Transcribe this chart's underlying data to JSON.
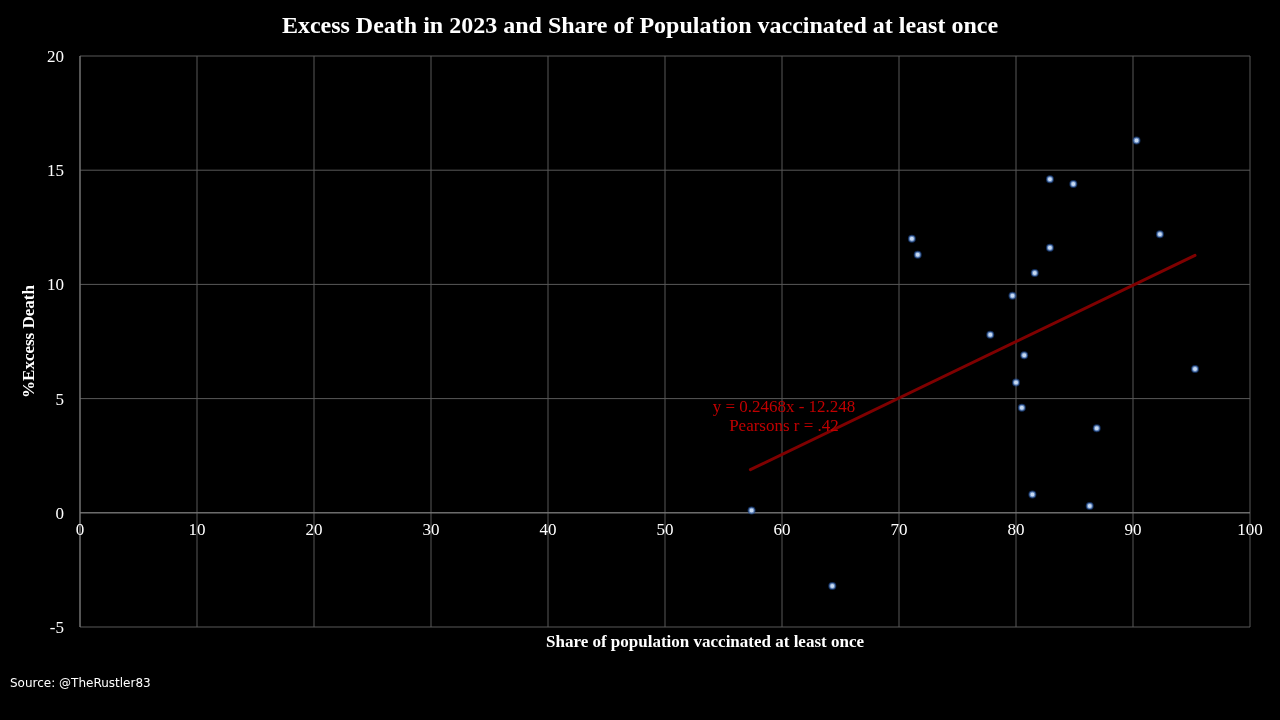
{
  "chart_data": {
    "type": "scatter",
    "title": "Excess Death in 2023 and Share of Population vaccinated at least once",
    "xlabel": "Share of population vaccinated at least once",
    "ylabel": "%Excess Death",
    "xlim": [
      0,
      100
    ],
    "xticks": [
      0,
      10,
      20,
      30,
      40,
      50,
      60,
      70,
      80,
      90,
      100
    ],
    "ylim": [
      -5,
      20
    ],
    "yticks": [
      -5,
      0,
      5,
      10,
      15,
      20
    ],
    "grid": true,
    "series": [
      {
        "color": "#c6d9f1",
        "marker": "circle",
        "x": [
          57.4,
          64.3,
          90.3,
          82.9,
          84.9,
          71.1,
          71.6,
          92.3,
          82.9,
          81.6,
          79.7,
          77.8,
          80.7,
          80.0,
          95.3,
          80.5,
          86.9,
          81.4,
          86.3
        ],
        "values": [
          0.1,
          -3.2,
          16.3,
          14.6,
          14.4,
          12.0,
          11.3,
          12.2,
          11.6,
          10.5,
          9.5,
          7.8,
          6.9,
          5.7,
          6.3,
          4.6,
          3.7,
          0.8,
          0.3
        ]
      },
      {
        "type": "line",
        "color": "#7f0000",
        "x": [
          57.3,
          95.3
        ],
        "values": [
          1.89,
          11.27
        ]
      }
    ],
    "annotations": [
      "y = 0.2468x - 12.248",
      "Pearsons r = .42",
      "Source: @TheRustler83"
    ]
  }
}
